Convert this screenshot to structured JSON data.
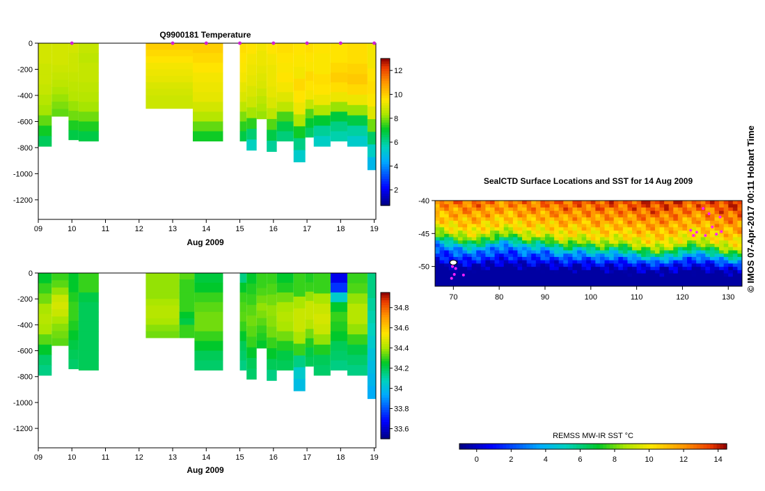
{
  "chart_data": [
    {
      "type": "heatmap",
      "title": "Q9900181  Temperature",
      "xlabel": "Aug 2009",
      "ylabel": "",
      "xlim": [
        9,
        19.05
      ],
      "ylim": [
        -1350,
        0
      ],
      "x_ticks": [
        "09",
        "10",
        "11",
        "12",
        "13",
        "14",
        "15",
        "16",
        "17",
        "18",
        "19"
      ],
      "y_ticks": [
        "0",
        "-200",
        "-400",
        "-600",
        "-800",
        "-1000",
        "-1200"
      ],
      "colorbar": {
        "ticks": [
          "2",
          "4",
          "6",
          "8",
          "10",
          "12"
        ],
        "min": 0.7,
        "max": 13
      },
      "profile_markers_x": [
        10.0,
        13.0,
        14.0,
        15.0,
        16.0,
        17.0,
        18.0,
        19.0
      ],
      "profiles": [
        {
          "x0": 9.0,
          "x1": 9.4,
          "depth": 790,
          "vals": [
            8.9,
            8.9,
            8.8,
            8.8,
            8.7,
            8.5,
            8.3,
            7.8,
            7.2,
            6.6
          ]
        },
        {
          "x0": 9.4,
          "x1": 9.9,
          "depth": 560,
          "vals": [
            8.9,
            8.9,
            8.9,
            8.8,
            8.7,
            8.6,
            8.4,
            8.2,
            8.0,
            7.8
          ]
        },
        {
          "x0": 9.9,
          "x1": 10.2,
          "depth": 740,
          "vals": [
            8.9,
            8.8,
            8.8,
            8.7,
            8.6,
            8.5,
            8.2,
            7.9,
            7.3,
            6.8
          ]
        },
        {
          "x0": 10.2,
          "x1": 10.8,
          "depth": 750,
          "vals": [
            8.7,
            8.6,
            8.7,
            8.7,
            8.6,
            8.5,
            8.3,
            7.9,
            7.3,
            6.8
          ]
        },
        {
          "x0": 12.2,
          "x1": 13.6,
          "depth": 500,
          "vals": [
            10.0,
            9.8,
            9.6,
            9.4,
            9.3,
            9.2,
            9.0,
            8.9,
            8.8,
            8.8
          ]
        },
        {
          "x0": 13.6,
          "x1": 14.5,
          "depth": 750,
          "vals": [
            10.0,
            9.8,
            9.6,
            9.4,
            9.3,
            9.2,
            8.9,
            8.5,
            7.8,
            7.2
          ]
        },
        {
          "x0": 15.0,
          "x1": 15.2,
          "depth": 750,
          "vals": [
            9.7,
            9.6,
            9.5,
            9.4,
            9.2,
            9.0,
            8.6,
            8.0,
            7.4,
            6.8
          ]
        },
        {
          "x0": 15.2,
          "x1": 15.5,
          "depth": 820,
          "vals": [
            9.6,
            9.4,
            9.3,
            9.2,
            9.0,
            8.8,
            8.3,
            7.4,
            6.4,
            5.6
          ]
        },
        {
          "x0": 15.5,
          "x1": 15.8,
          "depth": 580,
          "vals": [
            9.4,
            9.3,
            9.3,
            9.2,
            9.1,
            9.0,
            8.8,
            8.6,
            8.4,
            8.2
          ]
        },
        {
          "x0": 15.8,
          "x1": 16.1,
          "depth": 830,
          "vals": [
            9.6,
            9.4,
            9.3,
            9.3,
            9.2,
            9.0,
            8.6,
            7.7,
            6.8,
            6.0
          ]
        },
        {
          "x0": 16.1,
          "x1": 16.6,
          "depth": 750,
          "vals": [
            9.7,
            9.6,
            9.5,
            9.6,
            9.4,
            9.1,
            8.6,
            7.6,
            6.8,
            6.3
          ]
        },
        {
          "x0": 16.6,
          "x1": 16.95,
          "depth": 910,
          "vals": [
            9.6,
            9.5,
            9.4,
            9.8,
            9.6,
            9.3,
            8.4,
            7.2,
            6.2,
            5.4
          ]
        },
        {
          "x0": 16.95,
          "x1": 17.2,
          "depth": 720,
          "vals": [
            9.7,
            9.6,
            9.5,
            9.8,
            9.6,
            9.4,
            8.7,
            7.7,
            7.0,
            6.5
          ]
        },
        {
          "x0": 17.2,
          "x1": 17.7,
          "depth": 790,
          "vals": [
            9.6,
            9.5,
            9.5,
            9.7,
            9.6,
            9.3,
            8.4,
            7.0,
            6.0,
            5.5
          ]
        },
        {
          "x0": 17.7,
          "x1": 18.2,
          "depth": 750,
          "vals": [
            9.6,
            9.6,
            9.8,
            10.0,
            9.7,
            9.3,
            8.2,
            6.9,
            6.2,
            5.8
          ]
        },
        {
          "x0": 18.2,
          "x1": 18.8,
          "depth": 790,
          "vals": [
            9.7,
            9.7,
            9.9,
            10.1,
            9.8,
            9.3,
            8.2,
            6.8,
            5.9,
            5.4
          ]
        },
        {
          "x0": 18.8,
          "x1": 19.05,
          "depth": 970,
          "vals": [
            9.4,
            9.4,
            9.6,
            9.7,
            9.5,
            9.1,
            7.9,
            6.5,
            5.5,
            4.8
          ]
        }
      ]
    },
    {
      "type": "heatmap",
      "title": "",
      "xlabel": "Aug 2009",
      "ylabel": "",
      "xlim": [
        9,
        19.05
      ],
      "ylim": [
        -1350,
        0
      ],
      "x_ticks": [
        "09",
        "10",
        "11",
        "12",
        "13",
        "14",
        "15",
        "16",
        "17",
        "18",
        "19"
      ],
      "y_ticks": [
        "0",
        "-200",
        "-400",
        "-600",
        "-800",
        "-1000",
        "-1200"
      ],
      "colorbar": {
        "ticks": [
          "33.6",
          "33.8",
          "34",
          "34.2",
          "34.4",
          "34.6",
          "34.8"
        ],
        "min": 33.5,
        "max": 34.95
      },
      "profiles": [
        {
          "x0": 9.0,
          "x1": 9.4,
          "depth": 790,
          "vals": [
            34.25,
            34.3,
            34.35,
            34.4,
            34.42,
            34.4,
            34.33,
            34.25,
            34.18,
            34.15
          ]
        },
        {
          "x0": 9.4,
          "x1": 9.9,
          "depth": 560,
          "vals": [
            34.3,
            34.33,
            34.38,
            34.45,
            34.47,
            34.45,
            34.4,
            34.37,
            34.35,
            34.33
          ]
        },
        {
          "x0": 9.9,
          "x1": 10.2,
          "depth": 740,
          "vals": [
            34.25,
            34.25,
            34.28,
            34.3,
            34.3,
            34.28,
            34.25,
            34.22,
            34.2,
            34.18
          ]
        },
        {
          "x0": 10.2,
          "x1": 10.8,
          "depth": 750,
          "vals": [
            34.3,
            34.3,
            34.22,
            34.2,
            34.2,
            34.2,
            34.2,
            34.2,
            34.2,
            34.2
          ]
        },
        {
          "x0": 12.2,
          "x1": 13.2,
          "depth": 500,
          "vals": [
            34.38,
            34.38,
            34.38,
            34.38,
            34.4,
            34.42,
            34.42,
            34.4,
            34.37,
            34.35
          ]
        },
        {
          "x0": 13.2,
          "x1": 13.65,
          "depth": 500,
          "vals": [
            34.33,
            34.3,
            34.3,
            34.3,
            34.3,
            34.3,
            34.25,
            34.22,
            34.3,
            34.3
          ]
        },
        {
          "x0": 13.65,
          "x1": 14.5,
          "depth": 750,
          "vals": [
            34.23,
            34.25,
            34.3,
            34.33,
            34.35,
            34.35,
            34.3,
            34.25,
            34.2,
            34.18
          ]
        },
        {
          "x0": 15.0,
          "x1": 15.2,
          "depth": 750,
          "vals": [
            34.15,
            34.25,
            34.3,
            34.32,
            34.33,
            34.3,
            34.25,
            34.2,
            34.18,
            34.15
          ]
        },
        {
          "x0": 15.2,
          "x1": 15.5,
          "depth": 820,
          "vals": [
            34.25,
            34.28,
            34.3,
            34.33,
            34.35,
            34.33,
            34.3,
            34.25,
            34.2,
            34.18
          ]
        },
        {
          "x0": 15.5,
          "x1": 15.8,
          "depth": 580,
          "vals": [
            34.3,
            34.3,
            34.32,
            34.35,
            34.38,
            34.36,
            34.33,
            34.3,
            34.28,
            34.25
          ]
        },
        {
          "x0": 15.8,
          "x1": 16.1,
          "depth": 830,
          "vals": [
            34.3,
            34.32,
            34.35,
            34.38,
            34.37,
            34.35,
            34.3,
            34.25,
            34.2,
            34.15
          ]
        },
        {
          "x0": 16.1,
          "x1": 16.6,
          "depth": 750,
          "vals": [
            34.25,
            34.28,
            34.35,
            34.4,
            34.42,
            34.4,
            34.35,
            34.28,
            34.22,
            34.2
          ]
        },
        {
          "x0": 16.6,
          "x1": 16.95,
          "depth": 910,
          "vals": [
            34.3,
            34.3,
            34.4,
            34.45,
            34.45,
            34.4,
            34.3,
            34.15,
            34.05,
            34.0
          ]
        },
        {
          "x0": 16.95,
          "x1": 17.2,
          "depth": 720,
          "vals": [
            34.28,
            34.3,
            34.38,
            34.45,
            34.45,
            34.42,
            34.35,
            34.28,
            34.22,
            34.2
          ]
        },
        {
          "x0": 17.2,
          "x1": 17.7,
          "depth": 790,
          "vals": [
            34.3,
            34.3,
            34.4,
            34.45,
            34.47,
            34.45,
            34.38,
            34.28,
            34.2,
            34.18
          ]
        },
        {
          "x0": 17.7,
          "x1": 18.2,
          "depth": 750,
          "vals": [
            33.65,
            33.75,
            34.05,
            34.25,
            34.3,
            34.28,
            34.25,
            34.2,
            34.18,
            34.15
          ]
        },
        {
          "x0": 18.2,
          "x1": 18.8,
          "depth": 790,
          "vals": [
            34.3,
            34.32,
            34.38,
            34.42,
            34.42,
            34.38,
            34.3,
            34.22,
            34.18,
            34.15
          ]
        },
        {
          "x0": 18.8,
          "x1": 19.05,
          "depth": 970,
          "vals": [
            34.15,
            34.15,
            34.12,
            34.1,
            34.08,
            34.05,
            34.02,
            34.0,
            33.98,
            33.95
          ]
        }
      ]
    },
    {
      "type": "heatmap",
      "title": "SealCTD Surface Locations and SST for 14 Aug 2009",
      "xlabel": "",
      "ylabel": "",
      "xlim": [
        66,
        133
      ],
      "ylim": [
        -53,
        -40
      ],
      "x_ticks": [
        "70",
        "80",
        "90",
        "100",
        "110",
        "120",
        "130"
      ],
      "y_ticks": [
        "-40",
        "-45",
        "-50"
      ],
      "colorbar": {
        "label": "REMSS MW-IR SST °C",
        "ticks": [
          "0",
          "2",
          "4",
          "6",
          "8",
          "10",
          "12",
          "14"
        ],
        "min": -1,
        "max": 14.5
      },
      "sst_front_lat_by_lon": [
        [
          66,
          -45.5
        ],
        [
          70,
          -46.2
        ],
        [
          74,
          -46.8
        ],
        [
          78,
          -46.2
        ],
        [
          82,
          -45.6
        ],
        [
          86,
          -46.6
        ],
        [
          90,
          -46.4
        ],
        [
          94,
          -47.3
        ],
        [
          98,
          -46.9
        ],
        [
          102,
          -47.6
        ],
        [
          106,
          -47.2
        ],
        [
          110,
          -47.9
        ],
        [
          114,
          -48.3
        ],
        [
          118,
          -48.0
        ],
        [
          122,
          -47.2
        ],
        [
          126,
          -47.6
        ],
        [
          130,
          -48.4
        ],
        [
          133,
          -48.6
        ]
      ],
      "seal_locations": [
        {
          "lon": 69.8,
          "lat": -50.0
        },
        {
          "lon": 70.5,
          "lat": -50.3
        },
        {
          "lon": 70.2,
          "lat": -51.2
        },
        {
          "lon": 69.6,
          "lat": -51.8
        },
        {
          "lon": 72.2,
          "lat": -51.3
        },
        {
          "lon": 121.8,
          "lat": -44.5
        },
        {
          "lon": 122.4,
          "lat": -45.3
        },
        {
          "lon": 123.1,
          "lat": -44.8
        },
        {
          "lon": 124.5,
          "lat": -41.2
        },
        {
          "lon": 125.8,
          "lat": -42.0
        },
        {
          "lon": 126.5,
          "lat": -44.0
        },
        {
          "lon": 127.4,
          "lat": -45.1
        },
        {
          "lon": 128.5,
          "lat": -44.7
        },
        {
          "lon": 128.2,
          "lat": -42.5
        },
        {
          "lon": 125.0,
          "lat": -45.3
        }
      ],
      "kerguelen_island": {
        "lon": 70.0,
        "lat": -49.4
      }
    }
  ],
  "credit": "©  IMOS 07-Apr-2017 00:11 Hobart Time"
}
